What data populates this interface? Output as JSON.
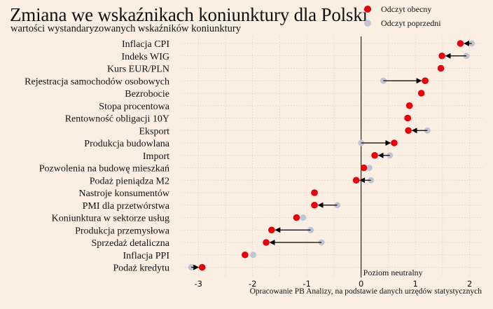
{
  "header": {
    "title": "Zmiana we wskaźnikach koniunktury dla Polski",
    "subtitle": "wartości wystandaryzowanych wskaźników koniunktury"
  },
  "legend": {
    "items": [
      {
        "label": "Odczyt obecny",
        "color": "#e8000b"
      },
      {
        "label": "Odczyt poprzedni",
        "color": "#c1c5d3"
      }
    ]
  },
  "footer": {
    "source": "Opracowanie PB Analizy, na podstawie danych urzędów statystycznych"
  },
  "chart_data": {
    "type": "dumbbell",
    "title": "Zmiana we wskaźnikach koniunktury dla Polski",
    "subtitle": "wartości wystandaryzowanych wskaźników koniunktury",
    "xlim": [
      -3.3,
      2.25
    ],
    "x_ticks": [
      -3,
      -2,
      -1,
      0,
      1,
      2
    ],
    "grid": true,
    "legend_position": "top-right",
    "reference_line": {
      "x": 0,
      "label": "Poziom neutralny"
    },
    "colors": {
      "current": "#e8000b",
      "previous": "#c1c5d3",
      "arrow": "#000000"
    },
    "series": [
      {
        "name": "Odczyt obecny",
        "key": "current"
      },
      {
        "name": "Odczyt poprzedni",
        "key": "previous"
      }
    ],
    "categories": [
      "Inflacja CPI",
      "Indeks WIG",
      "Kurs EUR/PLN",
      "Rejestracja samochodów osobowych",
      "Bezrobocie",
      "Stopa procentowa",
      "Rentowność obligacji 10Y",
      "Eksport",
      "Produkcja budowlana",
      "Import",
      "Pozwolenia na budowę mieszkań",
      "Podaż pieniądza M2",
      "Nastroje konsumentów",
      "PMI dla przetwórstwa",
      "Koniunktura w sektorze usług",
      "Produkcja przemysłowa",
      "Sprzedaż detaliczna",
      "Inflacja PPI",
      "Podaż kredytu"
    ],
    "current": [
      1.83,
      1.49,
      1.47,
      1.18,
      1.11,
      0.89,
      0.86,
      0.87,
      0.61,
      0.25,
      0.05,
      -0.09,
      -0.86,
      -0.86,
      -1.19,
      -1.65,
      -1.75,
      -2.14,
      -2.93
    ],
    "previous": [
      2.04,
      1.94,
      1.47,
      0.41,
      1.11,
      0.89,
      0.84,
      1.22,
      0.0,
      0.53,
      0.15,
      0.18,
      -0.86,
      -0.44,
      -1.07,
      -0.93,
      -0.73,
      -1.99,
      -3.13
    ]
  }
}
